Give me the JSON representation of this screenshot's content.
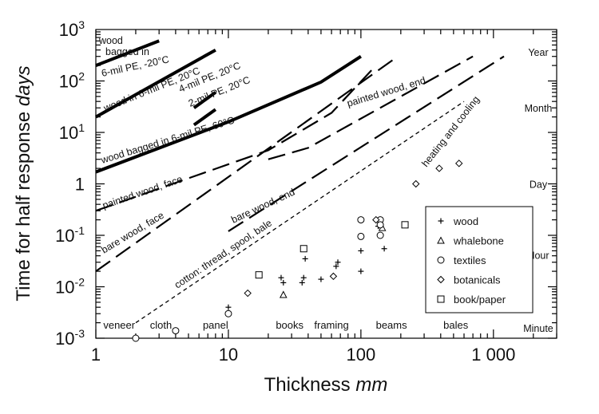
{
  "chart_data": {
    "type": "scatter",
    "title": "",
    "xlabel": "Thickness",
    "xlabel_unit": "mm",
    "ylabel": "Time for half response",
    "ylabel_unit": "days",
    "xscale": "log",
    "yscale": "log",
    "xlim": [
      1,
      3000
    ],
    "ylim": [
      0.001,
      1000
    ],
    "xticks": [
      {
        "value": 1,
        "label": "1"
      },
      {
        "value": 10,
        "label": "10"
      },
      {
        "value": 100,
        "label": "100"
      },
      {
        "value": 1000,
        "label": "1 000"
      }
    ],
    "yticks": [
      {
        "value": 0.001,
        "base": "10",
        "exp": "-3"
      },
      {
        "value": 0.01,
        "base": "10",
        "exp": "-2"
      },
      {
        "value": 0.1,
        "base": "10",
        "exp": "-1"
      },
      {
        "value": 1,
        "base": "1",
        "exp": ""
      },
      {
        "value": 10,
        "base": "10",
        "exp": "1"
      },
      {
        "value": 100,
        "base": "10",
        "exp": "2"
      },
      {
        "value": 1000,
        "base": "10",
        "exp": "3"
      }
    ],
    "time_labels": [
      {
        "label": "Year",
        "value": 365
      },
      {
        "label": "Month",
        "value": 30
      },
      {
        "label": "Day",
        "value": 1
      },
      {
        "label": "Hour",
        "value": 0.0417
      },
      {
        "label": "Minute",
        "value": 0.0007
      }
    ],
    "categories": [
      {
        "label": "veneer",
        "x": 1.5
      },
      {
        "label": "cloth",
        "x": 3.1
      },
      {
        "label": "panel",
        "x": 8
      },
      {
        "label": "books",
        "x": 29
      },
      {
        "label": "framing",
        "x": 60
      },
      {
        "label": "beams",
        "x": 170
      },
      {
        "label": "bales",
        "x": 520
      }
    ],
    "lines": [
      {
        "name": "wood bagged in 6-mil PE, -20°C",
        "style": "thick",
        "x": [
          1,
          3
        ],
        "y": [
          200,
          600
        ]
      },
      {
        "name": "wood in 6-mil PE, 20°C",
        "style": "thick",
        "x": [
          1,
          8
        ],
        "y": [
          20,
          400
        ]
      },
      {
        "name": "4-mil PE, 20°C",
        "style": "thick",
        "x": [
          5.5,
          8
        ],
        "y": [
          30,
          60
        ]
      },
      {
        "name": "2-mil PE, 20°C",
        "style": "thick",
        "x": [
          5.5,
          8
        ],
        "y": [
          14,
          28
        ]
      },
      {
        "name": "wood bagged in 6-mil PE, 60°C",
        "style": "thick",
        "x": [
          1,
          10,
          50,
          100
        ],
        "y": [
          1.7,
          16,
          95,
          300
        ]
      },
      {
        "name": "painted wood, end",
        "style": "longdash",
        "x": [
          20,
          40,
          700
        ],
        "y": [
          3,
          5,
          300
        ]
      },
      {
        "name": "painted wood, face",
        "style": "longdash",
        "x": [
          1,
          20,
          60,
          130
        ],
        "y": [
          0.3,
          4.5,
          24,
          200
        ]
      },
      {
        "name": "bare wood, end",
        "style": "longdash",
        "x": [
          10,
          1200
        ],
        "y": [
          0.12,
          300
        ]
      },
      {
        "name": "bare wood, face",
        "style": "longdash",
        "x": [
          1,
          190
        ],
        "y": [
          0.02,
          300
        ]
      },
      {
        "name": "cotton: thread, spool, bale",
        "style": "shortdash",
        "x": [
          2,
          600
        ],
        "y": [
          0.002,
          40
        ]
      }
    ],
    "legend": {
      "placement": "bottom-right"
    },
    "series": [
      {
        "name": "wood",
        "marker": "plus",
        "points": [
          [
            10,
            0.004
          ],
          [
            25,
            0.015
          ],
          [
            26,
            0.012
          ],
          [
            36,
            0.012
          ],
          [
            37,
            0.015
          ],
          [
            38,
            0.035
          ],
          [
            50,
            0.014
          ],
          [
            65,
            0.025
          ],
          [
            67,
            0.03
          ],
          [
            100,
            0.02
          ],
          [
            100,
            0.05
          ],
          [
            150,
            0.055
          ],
          [
            135,
            0.15
          ]
        ]
      },
      {
        "name": "whalebone",
        "marker": "triangle",
        "points": [
          [
            26,
            0.007
          ],
          [
            145,
            0.14
          ]
        ]
      },
      {
        "name": "textiles",
        "marker": "circle",
        "points": [
          [
            2,
            0.001
          ],
          [
            4,
            0.0014
          ],
          [
            10,
            0.003
          ],
          [
            100,
            0.2
          ],
          [
            100,
            0.095
          ],
          [
            140,
            0.2
          ],
          [
            140,
            0.16
          ],
          [
            140,
            0.1
          ]
        ]
      },
      {
        "name": "botanicals",
        "marker": "diamond",
        "points": [
          [
            14,
            0.0075
          ],
          [
            62,
            0.016
          ],
          [
            130,
            0.2
          ],
          [
            260,
            1
          ],
          [
            390,
            2
          ],
          [
            550,
            2.5
          ]
        ]
      },
      {
        "name": "book/paper",
        "marker": "square",
        "points": [
          [
            17,
            0.017
          ],
          [
            37,
            0.055
          ],
          [
            215,
            0.16
          ]
        ]
      }
    ]
  }
}
